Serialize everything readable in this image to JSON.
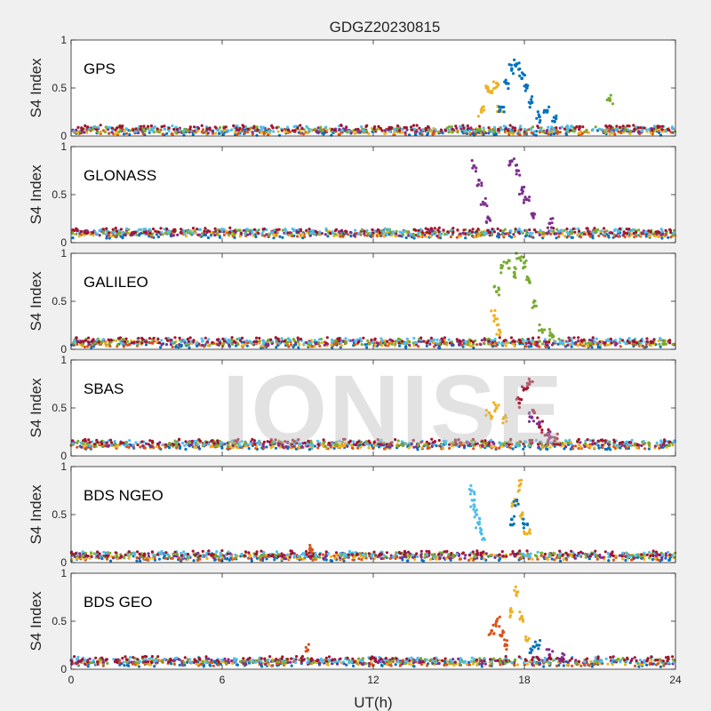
{
  "figure_title": "GDGZ20230815",
  "watermark_text": "IONISE",
  "colors": {
    "blue": "#0072BD",
    "orange": "#D95319",
    "yellow": "#EDB120",
    "purple": "#7E2F8E",
    "green": "#77AC30",
    "cyan": "#4DBEEE",
    "red": "#A2142F"
  },
  "chart_data": [
    {
      "type": "scatter",
      "panel_label": "GPS",
      "ylabel": "S4 Index",
      "xlabel": "",
      "xlim": [
        0,
        24
      ],
      "ylim": [
        0,
        1
      ],
      "xticks": [
        0,
        6,
        12,
        18,
        24
      ],
      "yticks": [
        0,
        0.5,
        1
      ],
      "ytick_labels": [
        "0",
        "0.5",
        "1"
      ],
      "baseline": 0.06,
      "series": [
        {
          "color": "yellow",
          "values": [
            [
              16.3,
              0.25
            ],
            [
              16.5,
              0.5
            ],
            [
              16.7,
              0.45
            ],
            [
              16.9,
              0.55
            ],
            [
              17.0,
              0.3
            ]
          ]
        },
        {
          "color": "blue",
          "values": [
            [
              17.1,
              0.3
            ],
            [
              17.3,
              0.55
            ],
            [
              17.5,
              0.7
            ],
            [
              17.7,
              0.75
            ],
            [
              17.9,
              0.6
            ],
            [
              18.1,
              0.5
            ],
            [
              18.3,
              0.35
            ],
            [
              18.6,
              0.2
            ],
            [
              18.9,
              0.25
            ],
            [
              19.2,
              0.15
            ]
          ]
        },
        {
          "color": "green",
          "values": [
            [
              21.4,
              0.37
            ]
          ]
        }
      ]
    },
    {
      "type": "scatter",
      "panel_label": "GLONASS",
      "ylabel": "S4 Index",
      "xlabel": "",
      "xlim": [
        0,
        24
      ],
      "ylim": [
        0,
        1
      ],
      "xticks": [
        0,
        6,
        12,
        18,
        24
      ],
      "yticks": [
        0,
        0.5,
        1
      ],
      "ytick_labels": [
        "0",
        "0.5",
        "1"
      ],
      "baseline": 0.1,
      "series": [
        {
          "color": "purple",
          "values": [
            [
              16.0,
              0.8
            ],
            [
              16.2,
              0.65
            ],
            [
              16.4,
              0.4
            ],
            [
              16.6,
              0.25
            ],
            [
              17.5,
              0.85
            ],
            [
              17.7,
              0.75
            ],
            [
              17.9,
              0.55
            ],
            [
              18.1,
              0.45
            ],
            [
              18.3,
              0.3
            ],
            [
              19.0,
              0.2
            ]
          ]
        }
      ]
    },
    {
      "type": "scatter",
      "panel_label": "GALILEO",
      "ylabel": "S4 Index",
      "xlabel": "",
      "xlim": [
        0,
        24
      ],
      "ylim": [
        0,
        1
      ],
      "xticks": [
        0,
        6,
        12,
        18,
        24
      ],
      "yticks": [
        0,
        0.5,
        1
      ],
      "ytick_labels": [
        "0",
        "0.5",
        "1"
      ],
      "baseline": 0.07,
      "series": [
        {
          "color": "green",
          "values": [
            [
              16.9,
              0.6
            ],
            [
              17.1,
              0.85
            ],
            [
              17.3,
              0.9
            ],
            [
              17.6,
              0.8
            ],
            [
              17.8,
              0.95
            ],
            [
              18.0,
              0.9
            ],
            [
              18.2,
              0.7
            ],
            [
              18.4,
              0.45
            ],
            [
              18.7,
              0.2
            ],
            [
              19.1,
              0.15
            ]
          ]
        },
        {
          "color": "yellow",
          "values": [
            [
              16.8,
              0.35
            ],
            [
              17.0,
              0.2
            ]
          ]
        }
      ]
    },
    {
      "type": "scatter",
      "panel_label": "SBAS",
      "ylabel": "S4 Index",
      "xlabel": "",
      "xlim": [
        0,
        24
      ],
      "ylim": [
        0,
        1
      ],
      "xticks": [
        0,
        6,
        12,
        18,
        24
      ],
      "yticks": [
        0,
        0.5,
        1
      ],
      "ytick_labels": [
        "0",
        "0.5",
        "1"
      ],
      "baseline": 0.12,
      "series": [
        {
          "color": "red",
          "values": [
            [
              17.8,
              0.55
            ],
            [
              18.0,
              0.7
            ],
            [
              18.2,
              0.75
            ],
            [
              18.4,
              0.45
            ],
            [
              18.6,
              0.3
            ],
            [
              18.9,
              0.22
            ],
            [
              19.3,
              0.18
            ]
          ]
        },
        {
          "color": "yellow",
          "values": [
            [
              16.6,
              0.45
            ],
            [
              16.9,
              0.5
            ],
            [
              17.2,
              0.4
            ]
          ]
        },
        {
          "color": "purple",
          "values": [
            [
              18.3,
              0.4
            ],
            [
              18.6,
              0.35
            ],
            [
              19.0,
              0.2
            ]
          ]
        }
      ]
    },
    {
      "type": "scatter",
      "panel_label": "BDS NGEO",
      "ylabel": "S4 Index",
      "xlabel": "",
      "xlim": [
        0,
        24
      ],
      "ylim": [
        0,
        1
      ],
      "xticks": [
        0,
        6,
        12,
        18,
        24
      ],
      "yticks": [
        0,
        0.5,
        1
      ],
      "ytick_labels": [
        "0",
        "0.5",
        "1"
      ],
      "baseline": 0.07,
      "series": [
        {
          "color": "cyan",
          "values": [
            [
              15.9,
              0.75
            ],
            [
              16.0,
              0.6
            ],
            [
              16.1,
              0.5
            ],
            [
              16.2,
              0.4
            ],
            [
              16.3,
              0.3
            ]
          ]
        },
        {
          "color": "yellow",
          "values": [
            [
              17.6,
              0.6
            ],
            [
              17.8,
              0.8
            ],
            [
              17.9,
              0.5
            ],
            [
              18.1,
              0.3
            ]
          ]
        },
        {
          "color": "blue",
          "values": [
            [
              17.5,
              0.45
            ],
            [
              17.7,
              0.65
            ],
            [
              18.0,
              0.4
            ]
          ]
        },
        {
          "color": "orange",
          "values": [
            [
              9.5,
              0.15
            ]
          ]
        }
      ]
    },
    {
      "type": "scatter",
      "panel_label": "BDS GEO",
      "ylabel": "S4 Index",
      "xlabel": "UT(h)",
      "xlim": [
        0,
        24
      ],
      "ylim": [
        0,
        1
      ],
      "xticks": [
        0,
        6,
        12,
        18,
        24
      ],
      "xtick_labels": [
        "0",
        "6",
        "12",
        "18",
        "24"
      ],
      "yticks": [
        0,
        0.5,
        1
      ],
      "ytick_labels": [
        "0",
        "0.5",
        "1"
      ],
      "baseline": 0.08,
      "series": [
        {
          "color": "orange",
          "values": [
            [
              16.7,
              0.4
            ],
            [
              16.9,
              0.5
            ],
            [
              17.1,
              0.35
            ],
            [
              17.3,
              0.25
            ]
          ]
        },
        {
          "color": "yellow",
          "values": [
            [
              17.5,
              0.6
            ],
            [
              17.7,
              0.8
            ],
            [
              17.9,
              0.55
            ],
            [
              18.1,
              0.3
            ]
          ]
        },
        {
          "color": "blue",
          "values": [
            [
              18.3,
              0.2
            ],
            [
              18.5,
              0.25
            ]
          ]
        },
        {
          "color": "purple",
          "values": [
            [
              19.0,
              0.15
            ],
            [
              19.5,
              0.12
            ]
          ]
        },
        {
          "color": "orange",
          "values": [
            [
              9.4,
              0.2
            ]
          ]
        }
      ]
    }
  ]
}
